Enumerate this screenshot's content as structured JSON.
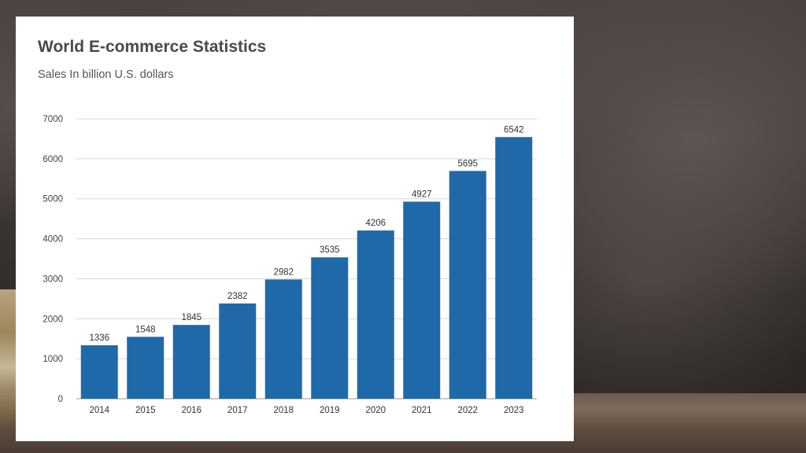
{
  "chart_data": {
    "type": "bar",
    "title": "World E-commerce Statistics",
    "subtitle": "Sales In billion U.S. dollars",
    "categories": [
      "2014",
      "2015",
      "2016",
      "2017",
      "2018",
      "2019",
      "2020",
      "2021",
      "2022",
      "2023"
    ],
    "values": [
      1336,
      1548,
      1845,
      2382,
      2982,
      3535,
      4206,
      4927,
      5695,
      6542
    ],
    "ylim": [
      0,
      7000
    ],
    "yticks": [
      "0",
      "1000",
      "2000",
      "3000",
      "4000",
      "5000",
      "6000",
      "7000"
    ],
    "grid": true,
    "bar_color": "#1f69a8"
  }
}
